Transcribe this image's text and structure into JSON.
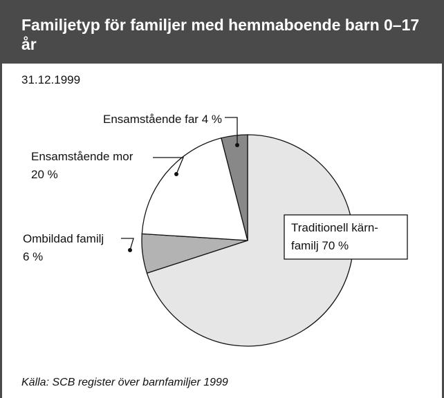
{
  "chart_data": {
    "type": "pie",
    "title": "Familjetyp för familjer med hemmaboende barn 0–17 år",
    "subtitle": "31.12.1999",
    "source": "Källa: SCB register över barnfamiljer 1999",
    "categories": [
      "Traditionell kärn-familj",
      "Ombildad familj",
      "Ensamstående mor",
      "Ensamstående far"
    ],
    "values": [
      70,
      6,
      20,
      4
    ],
    "value_labels": [
      "70 %",
      "6 %",
      "20 %",
      "4 %"
    ],
    "colors": [
      "#e6e6e6",
      "#b3b3b3",
      "#ffffff",
      "#888888"
    ]
  }
}
